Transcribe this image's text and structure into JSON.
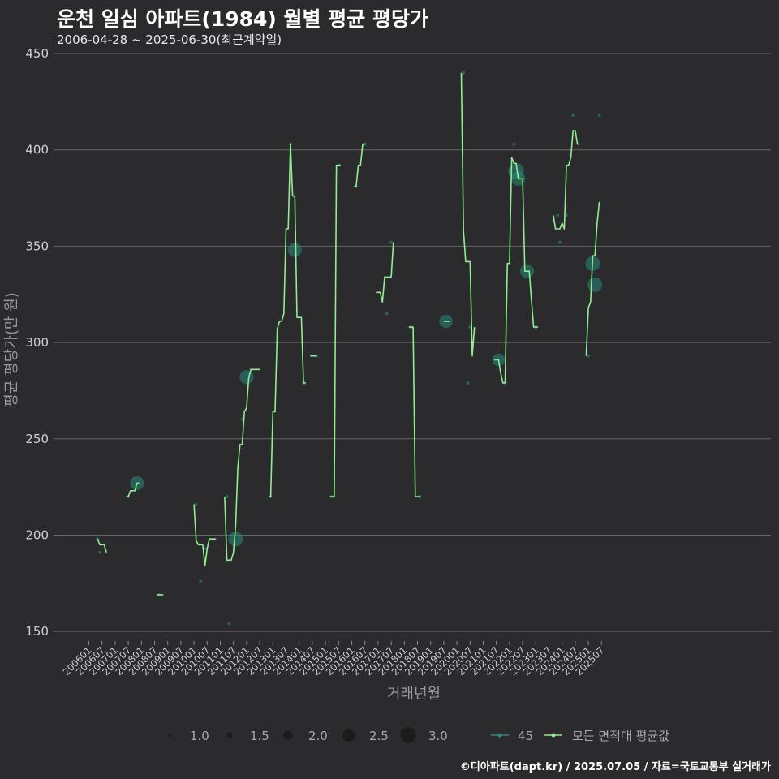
{
  "header": {
    "title": "운천 일심 아파트(1984) 월별 평균 평당가",
    "subtitle": "2006-04-28 ~ 2025-06-30(최근계약일)"
  },
  "footer": {
    "text": "©디아파트(dapt.kr) / 2025.07.05 / 자료=국토교통부 실거래가"
  },
  "colors": {
    "line": "#90ee90",
    "points": "#2a8a7e",
    "grid": "#666666",
    "background": "#2b2b2d"
  },
  "chart_data": {
    "type": "line",
    "title": "운천 일심 아파트(1984) 월별 평균 평당가",
    "xlabel": "거래년월",
    "ylabel": "평균 평당가(만 원)",
    "ylim": [
      145,
      450
    ],
    "yticks": [
      150,
      200,
      250,
      300,
      350,
      400,
      450
    ],
    "xticks": [
      "200601",
      "200607",
      "200701",
      "200707",
      "200801",
      "200807",
      "200901",
      "200907",
      "201001",
      "201007",
      "201101",
      "201107",
      "201201",
      "201207",
      "201301",
      "201307",
      "201401",
      "201407",
      "201501",
      "201507",
      "201601",
      "201607",
      "201701",
      "201707",
      "201801",
      "201807",
      "201901",
      "201907",
      "202001",
      "202007",
      "202101",
      "202107",
      "202201",
      "202207",
      "202301",
      "202307",
      "202401",
      "202407",
      "202501",
      "202507"
    ],
    "x_start": "2006-01",
    "series": [
      {
        "name": "모든 면적대 평균값",
        "segments": [
          [
            [
              "2006-05",
              198
            ],
            [
              "2006-06",
              195
            ],
            [
              "2006-07",
              195
            ],
            [
              "2006-08",
              195
            ],
            [
              "2006-09",
              191
            ]
          ],
          [
            [
              "2007-06",
              220
            ],
            [
              "2007-07",
              220
            ],
            [
              "2007-08",
              223
            ],
            [
              "2007-09",
              223
            ],
            [
              "2007-10",
              223
            ],
            [
              "2007-11",
              227
            ],
            [
              "2007-12",
              227
            ]
          ],
          [
            [
              "2008-08",
              169
            ],
            [
              "2008-09",
              169
            ],
            [
              "2008-10",
              169
            ],
            [
              "2008-11",
              169
            ]
          ],
          [
            [
              "2010-01",
              216
            ],
            [
              "2010-02",
              197
            ],
            [
              "2010-03",
              195
            ],
            [
              "2010-04",
              195
            ],
            [
              "2010-05",
              195
            ],
            [
              "2010-06",
              184
            ],
            [
              "2010-07",
              193
            ],
            [
              "2010-08",
              198
            ],
            [
              "2010-09",
              198
            ],
            [
              "2010-10",
              198
            ],
            [
              "2010-11",
              198
            ]
          ],
          [
            [
              "2011-03",
              220
            ],
            [
              "2011-04",
              187
            ],
            [
              "2011-05",
              187
            ],
            [
              "2011-06",
              187
            ],
            [
              "2011-07",
              191
            ],
            [
              "2011-08",
              205
            ],
            [
              "2011-09",
              235
            ],
            [
              "2011-10",
              247
            ],
            [
              "2011-11",
              247
            ],
            [
              "2011-12",
              264
            ],
            [
              "2012-01",
              266
            ],
            [
              "2012-02",
              282
            ],
            [
              "2012-03",
              286
            ],
            [
              "2012-04",
              286
            ],
            [
              "2012-05",
              286
            ],
            [
              "2012-06",
              286
            ],
            [
              "2012-07",
              286
            ]
          ],
          [
            [
              "2012-11",
              220
            ],
            [
              "2012-12",
              220
            ],
            [
              "2013-01",
              264
            ],
            [
              "2013-02",
              264
            ],
            [
              "2013-03",
              307
            ],
            [
              "2013-04",
              311
            ],
            [
              "2013-05",
              311
            ],
            [
              "2013-06",
              315
            ],
            [
              "2013-07",
              359
            ],
            [
              "2013-08",
              359
            ],
            [
              "2013-09",
              403
            ],
            [
              "2013-10",
              376
            ],
            [
              "2013-11",
              376
            ],
            [
              "2013-12",
              313
            ],
            [
              "2014-01",
              313
            ],
            [
              "2014-02",
              313
            ],
            [
              "2014-03",
              279
            ],
            [
              "2014-04",
              279
            ]
          ],
          [
            [
              "2014-06",
              293
            ],
            [
              "2014-07",
              293
            ],
            [
              "2014-08",
              293
            ],
            [
              "2014-09",
              293
            ]
          ],
          [
            [
              "2015-03",
              220
            ],
            [
              "2015-04",
              220
            ],
            [
              "2015-05",
              220
            ],
            [
              "2015-06",
              392
            ],
            [
              "2015-07",
              392
            ],
            [
              "2015-08",
              392
            ]
          ],
          [
            [
              "2016-02",
              381
            ],
            [
              "2016-03",
              381
            ],
            [
              "2016-04",
              392
            ],
            [
              "2016-05",
              392
            ],
            [
              "2016-06",
              403
            ],
            [
              "2016-07",
              403
            ]
          ],
          [
            [
              "2016-12",
              326
            ],
            [
              "2017-01",
              326
            ],
            [
              "2017-02",
              326
            ],
            [
              "2017-03",
              321
            ],
            [
              "2017-04",
              334
            ],
            [
              "2017-05",
              334
            ],
            [
              "2017-06",
              334
            ],
            [
              "2017-07",
              334
            ],
            [
              "2017-08",
              352
            ]
          ],
          [
            [
              "2018-03",
              308
            ],
            [
              "2018-04",
              308
            ],
            [
              "2018-05",
              308
            ],
            [
              "2018-06",
              220
            ],
            [
              "2018-07",
              220
            ],
            [
              "2018-08",
              220
            ]
          ],
          [
            [
              "2019-07",
              311
            ],
            [
              "2019-08",
              311
            ],
            [
              "2019-09",
              311
            ],
            [
              "2019-10",
              311
            ]
          ],
          [
            [
              "2020-03",
              440
            ],
            [
              "2020-04",
              358
            ],
            [
              "2020-05",
              342
            ],
            [
              "2020-06",
              342
            ],
            [
              "2020-07",
              342
            ],
            [
              "2020-08",
              293
            ],
            [
              "2020-09",
              308
            ]
          ],
          [
            [
              "2021-06",
              291
            ],
            [
              "2021-07",
              291
            ],
            [
              "2021-08",
              291
            ],
            [
              "2021-09",
              284
            ],
            [
              "2021-10",
              279
            ],
            [
              "2021-11",
              279
            ],
            [
              "2021-12",
              341
            ],
            [
              "2022-01",
              341
            ],
            [
              "2022-02",
              396
            ],
            [
              "2022-03",
              393
            ],
            [
              "2022-04",
              393
            ],
            [
              "2022-05",
              385
            ],
            [
              "2022-06",
              385
            ],
            [
              "2022-07",
              385
            ],
            [
              "2022-08",
              337
            ],
            [
              "2022-09",
              337
            ],
            [
              "2022-10",
              337
            ],
            [
              "2022-11",
              322
            ],
            [
              "2022-12",
              308
            ],
            [
              "2023-01",
              308
            ],
            [
              "2023-02",
              308
            ]
          ],
          [
            [
              "2023-09",
              366
            ],
            [
              "2023-10",
              359
            ],
            [
              "2023-11",
              359
            ],
            [
              "2023-12",
              359
            ],
            [
              "2024-01",
              362
            ],
            [
              "2024-02",
              359
            ],
            [
              "2024-03",
              392
            ],
            [
              "2024-04",
              392
            ],
            [
              "2024-05",
              396
            ],
            [
              "2024-06",
              410
            ],
            [
              "2024-07",
              410
            ],
            [
              "2024-08",
              403
            ],
            [
              "2024-09",
              403
            ]
          ],
          [
            [
              "2024-12",
              293
            ],
            [
              "2025-01",
              318
            ],
            [
              "2025-02",
              321
            ],
            [
              "2025-03",
              345
            ],
            [
              "2025-04",
              345
            ],
            [
              "2025-05",
              362
            ],
            [
              "2025-06",
              373
            ]
          ]
        ]
      },
      {
        "name": "45",
        "points": [
          [
            "2006-05",
            198,
            1
          ],
          [
            "2006-06",
            191,
            1
          ],
          [
            "2007-07",
            220,
            1
          ],
          [
            "2007-11",
            227,
            2.7
          ],
          [
            "2008-09",
            169,
            1
          ],
          [
            "2010-02",
            216,
            1
          ],
          [
            "2010-04",
            176,
            1
          ],
          [
            "2010-06",
            193,
            1
          ],
          [
            "2011-04",
            220,
            1
          ],
          [
            "2011-05",
            154,
            1
          ],
          [
            "2011-08",
            198,
            2.8
          ],
          [
            "2011-11",
            260,
            1
          ],
          [
            "2012-01",
            282,
            2.7
          ],
          [
            "2012-03",
            286,
            1
          ],
          [
            "2012-12",
            220,
            1
          ],
          [
            "2013-09",
            403,
            1
          ],
          [
            "2013-11",
            348,
            2.7
          ],
          [
            "2014-03",
            279,
            1
          ],
          [
            "2014-09",
            293,
            1
          ],
          [
            "2015-04",
            220,
            1
          ],
          [
            "2015-07",
            392,
            1
          ],
          [
            "2016-03",
            381,
            1
          ],
          [
            "2016-07",
            403,
            1
          ],
          [
            "2017-05",
            315,
            1
          ],
          [
            "2017-07",
            352,
            1
          ],
          [
            "2018-04",
            308,
            1
          ],
          [
            "2018-08",
            220,
            1
          ],
          [
            "2019-08",
            311,
            2.6
          ],
          [
            "2020-04",
            440,
            1
          ],
          [
            "2020-06",
            279,
            1
          ],
          [
            "2020-07",
            308,
            1
          ],
          [
            "2021-08",
            291,
            2.5
          ],
          [
            "2021-11",
            279,
            1
          ],
          [
            "2022-03",
            403,
            1
          ],
          [
            "2022-04",
            389,
            3
          ],
          [
            "2022-05",
            385,
            2.7
          ],
          [
            "2022-09",
            337,
            2.7
          ],
          [
            "2023-01",
            308,
            1
          ],
          [
            "2023-11",
            366,
            1
          ],
          [
            "2023-12",
            352,
            1
          ],
          [
            "2024-03",
            366,
            1
          ],
          [
            "2024-06",
            418,
            1
          ],
          [
            "2025-01",
            293,
            1
          ],
          [
            "2025-03",
            341,
            2.8
          ],
          [
            "2025-04",
            330,
            2.8
          ],
          [
            "2025-06",
            418,
            1
          ]
        ]
      }
    ],
    "size_legend": {
      "values": [
        "1.0",
        "1.5",
        "2.0",
        "2.5",
        "3.0"
      ]
    },
    "legend_position": "bottom"
  }
}
